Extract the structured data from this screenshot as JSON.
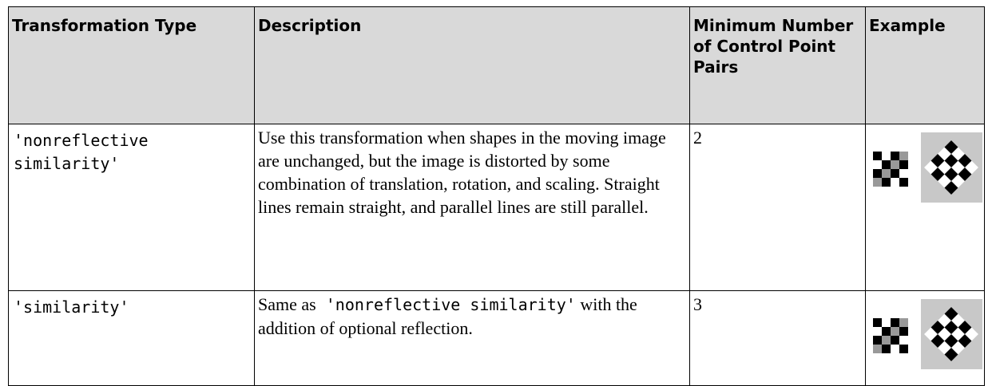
{
  "table": {
    "headers": [
      "Transformation Type",
      "Description",
      "Minimum Number of Control Point Pairs",
      "Example"
    ],
    "rows": [
      {
        "type": "'nonreflective similarity'",
        "description": [
          "Use this transformation when shapes in the moving image are unchanged, but the image is distorted by some combination of translation, rotation, and scaling. Straight lines remain straight, and parallel lines are still parallel."
        ],
        "min_pairs": "2"
      },
      {
        "type": "'similarity'",
        "description": [
          "Same as",
          "'nonreflective similarity'",
          "with the addition of optional reflection."
        ],
        "min_pairs": "3"
      }
    ]
  }
}
